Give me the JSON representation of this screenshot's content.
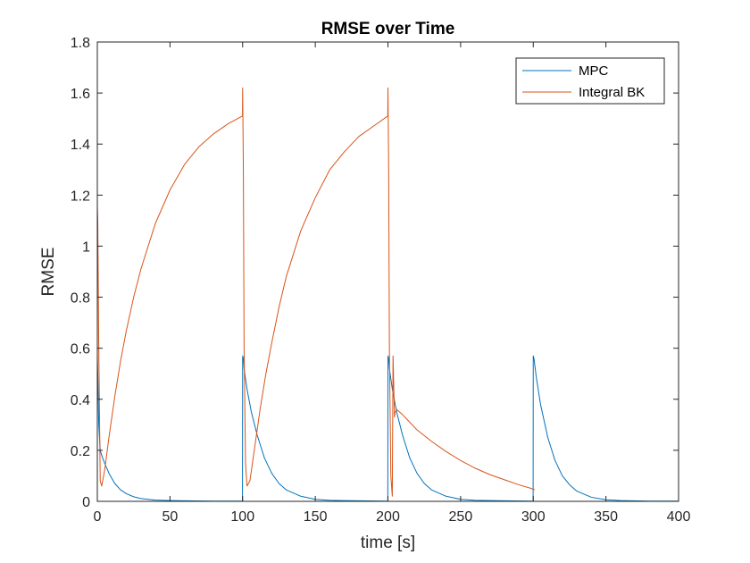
{
  "chart_data": {
    "type": "line",
    "title": "RMSE over Time",
    "xlabel": "time [s]",
    "ylabel": "RMSE",
    "xlim": [
      0,
      400
    ],
    "ylim": [
      0,
      1.8
    ],
    "xticks": [
      0,
      50,
      100,
      150,
      200,
      250,
      300,
      350,
      400
    ],
    "yticks": [
      0,
      0.2,
      0.4,
      0.6,
      0.8,
      1,
      1.2,
      1.4,
      1.6,
      1.8
    ],
    "xtick_labels": [
      "0",
      "50",
      "100",
      "150",
      "200",
      "250",
      "300",
      "350",
      "400"
    ],
    "ytick_labels": [
      "0",
      "0.2",
      "0.4",
      "0.6",
      "0.8",
      "1",
      "1.2",
      "1.4",
      "1.6",
      "1.8"
    ],
    "grid": false,
    "legend_position": "top-right",
    "series": [
      {
        "name": "MPC",
        "color": "#0072BD",
        "x": [
          0,
          0.5,
          1,
          2,
          3,
          5,
          8,
          12,
          16,
          20,
          25,
          30,
          40,
          50,
          60,
          80,
          99.9,
          100,
          100.5,
          101,
          103,
          106,
          110,
          115,
          120,
          125,
          130,
          140,
          150,
          160,
          180,
          199.8,
          199.9,
          200,
          200.5,
          201,
          203,
          206,
          210,
          215,
          220,
          225,
          230,
          240,
          250,
          260,
          280,
          299.9,
          300,
          300.5,
          302,
          305,
          310,
          315,
          320,
          325,
          330,
          340,
          350,
          360,
          380,
          400
        ],
        "y": [
          0.57,
          0.45,
          0.3,
          0.2,
          0.18,
          0.15,
          0.11,
          0.07,
          0.045,
          0.03,
          0.018,
          0.011,
          0.005,
          0.003,
          0.002,
          0.001,
          0.001,
          0.57,
          0.56,
          0.52,
          0.44,
          0.35,
          0.26,
          0.17,
          0.11,
          0.07,
          0.045,
          0.02,
          0.008,
          0.004,
          0.002,
          0.001,
          0.0,
          0.57,
          0.56,
          0.52,
          0.44,
          0.35,
          0.26,
          0.17,
          0.11,
          0.07,
          0.045,
          0.02,
          0.008,
          0.004,
          0.002,
          0.001,
          0.57,
          0.56,
          0.49,
          0.38,
          0.25,
          0.16,
          0.1,
          0.065,
          0.04,
          0.016,
          0.006,
          0.003,
          0.001,
          0.001
        ]
      },
      {
        "name": "Integral BK",
        "color": "#D95319",
        "x": [
          0,
          0.3,
          1,
          2,
          3,
          5,
          8,
          12,
          16,
          20,
          25,
          30,
          40,
          50,
          60,
          70,
          80,
          90,
          99.9,
          100,
          100.5,
          101,
          102,
          103,
          105,
          108,
          112,
          116,
          120,
          125,
          130,
          140,
          150,
          160,
          170,
          180,
          190,
          199.9,
          200,
          200.5,
          201,
          202,
          203,
          203.5,
          204,
          204.5,
          205,
          206,
          210,
          215,
          220,
          230,
          240,
          250,
          260,
          270,
          280,
          290,
          300,
          301
        ],
        "y": [
          1.16,
          1.1,
          0.6,
          0.08,
          0.06,
          0.12,
          0.25,
          0.41,
          0.55,
          0.67,
          0.8,
          0.91,
          1.09,
          1.22,
          1.32,
          1.39,
          1.44,
          1.48,
          1.51,
          1.62,
          1.3,
          0.6,
          0.15,
          0.06,
          0.08,
          0.2,
          0.36,
          0.5,
          0.62,
          0.76,
          0.88,
          1.06,
          1.19,
          1.3,
          1.37,
          1.43,
          1.47,
          1.51,
          1.62,
          1.3,
          0.6,
          0.1,
          0.02,
          0.57,
          0.45,
          0.33,
          0.35,
          0.36,
          0.34,
          0.31,
          0.28,
          0.235,
          0.195,
          0.16,
          0.13,
          0.105,
          0.085,
          0.065,
          0.048,
          0.045
        ]
      }
    ]
  }
}
